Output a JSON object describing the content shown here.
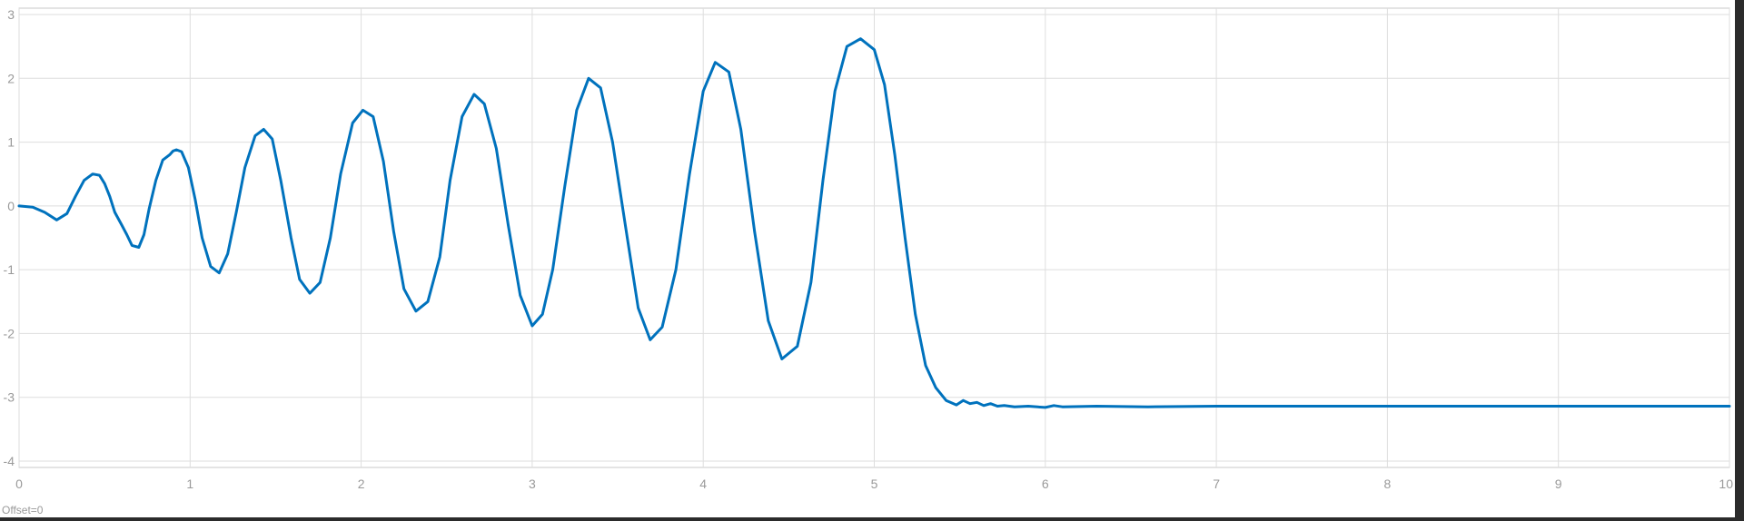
{
  "chart_data": {
    "type": "line",
    "title": "",
    "xlabel": "",
    "ylabel": "",
    "xlim": [
      0,
      10
    ],
    "ylim": [
      -4.1,
      3.1
    ],
    "x_ticks": [
      0,
      1,
      2,
      3,
      4,
      5,
      6,
      7,
      8,
      9,
      10
    ],
    "y_ticks": [
      3,
      2,
      1,
      0,
      -1,
      -2,
      -3,
      -4
    ],
    "grid": true,
    "line_color": "#0072bd",
    "series": [
      {
        "x": [
          0.0,
          0.08,
          0.15,
          0.22,
          0.28,
          0.33,
          0.38,
          0.43,
          0.47,
          0.5,
          0.53,
          0.56,
          0.58,
          0.59,
          0.6,
          0.63,
          0.66,
          0.7,
          0.73,
          0.76,
          0.8,
          0.84,
          0.88,
          0.9,
          0.92,
          0.95,
          0.99,
          1.03,
          1.07,
          1.12,
          1.17,
          1.22,
          1.27,
          1.32,
          1.38,
          1.43,
          1.48,
          1.53,
          1.59,
          1.64,
          1.7,
          1.76,
          1.82,
          1.88,
          1.95,
          2.01,
          2.07,
          2.13,
          2.19,
          2.25,
          2.32,
          2.39,
          2.46,
          2.52,
          2.59,
          2.66,
          2.72,
          2.79,
          2.86,
          2.93,
          3.0,
          3.06,
          3.12,
          3.19,
          3.26,
          3.33,
          3.4,
          3.47,
          3.55,
          3.62,
          3.69,
          3.76,
          3.84,
          3.92,
          4.0,
          4.07,
          4.15,
          4.22,
          4.3,
          4.38,
          4.46,
          4.55,
          4.63,
          4.7,
          4.77,
          4.84,
          4.92,
          5.0,
          5.06,
          5.12,
          5.18,
          5.24,
          5.3,
          5.36,
          5.42,
          5.48,
          5.52,
          5.56,
          5.6,
          5.64,
          5.68,
          5.72,
          5.76,
          5.82,
          5.9,
          6.0,
          6.05,
          6.1,
          6.3,
          6.6,
          7.0,
          7.5,
          8.0,
          8.5,
          9.0,
          9.5,
          10.0
        ],
        "y": [
          0.0,
          -0.02,
          -0.1,
          -0.22,
          -0.12,
          0.15,
          0.4,
          0.5,
          0.48,
          0.35,
          0.15,
          -0.1,
          -0.2,
          -0.25,
          -0.3,
          -0.45,
          -0.62,
          -0.65,
          -0.45,
          -0.05,
          0.4,
          0.72,
          0.8,
          0.86,
          0.88,
          0.85,
          0.6,
          0.1,
          -0.5,
          -0.95,
          -1.05,
          -0.75,
          -0.1,
          0.6,
          1.1,
          1.2,
          1.05,
          0.4,
          -0.5,
          -1.15,
          -1.37,
          -1.2,
          -0.5,
          0.5,
          1.3,
          1.5,
          1.4,
          0.7,
          -0.4,
          -1.3,
          -1.65,
          -1.5,
          -0.8,
          0.4,
          1.4,
          1.75,
          1.6,
          0.9,
          -0.3,
          -1.4,
          -1.88,
          -1.7,
          -1.0,
          0.3,
          1.5,
          2.0,
          1.85,
          1.0,
          -0.4,
          -1.6,
          -2.1,
          -1.9,
          -1.0,
          0.5,
          1.8,
          2.25,
          2.1,
          1.2,
          -0.4,
          -1.8,
          -2.4,
          -2.2,
          -1.2,
          0.4,
          1.8,
          2.5,
          2.62,
          2.45,
          1.9,
          0.8,
          -0.5,
          -1.7,
          -2.5,
          -2.85,
          -3.05,
          -3.12,
          -3.05,
          -3.1,
          -3.08,
          -3.13,
          -3.1,
          -3.14,
          -3.13,
          -3.15,
          -3.14,
          -3.16,
          -3.13,
          -3.15,
          -3.14,
          -3.15,
          -3.14,
          -3.14,
          -3.14,
          -3.14,
          -3.14,
          -3.14,
          -3.14
        ]
      }
    ]
  },
  "status": {
    "offset_label": "Offset=0"
  }
}
